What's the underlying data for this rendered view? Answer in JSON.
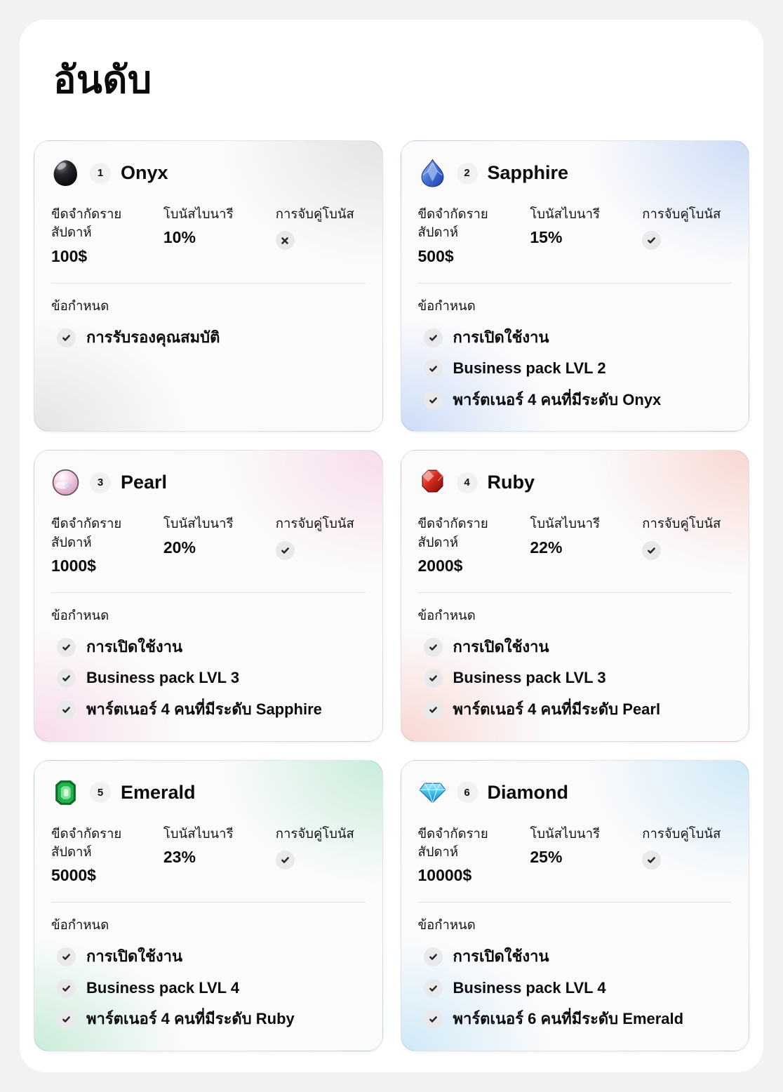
{
  "page_title": "อันดับ",
  "columns": {
    "weekly_limit": "ขีดจำกัดรายสัปดาห์",
    "binary_bonus": "โบนัสไบนารี",
    "matching_bonus": "การจับคู่โบนัส"
  },
  "requirements_label": "ข้อกำหนด",
  "ranks": [
    {
      "number": "1",
      "name": "Onyx",
      "icon": "onyx-gem-icon",
      "tint": "#e4e4e6",
      "weekly_limit": "100$",
      "binary_bonus": "10%",
      "matching_bonus": false,
      "requirements": [
        "การรับรองคุณสมบัติ"
      ]
    },
    {
      "number": "2",
      "name": "Sapphire",
      "icon": "sapphire-gem-icon",
      "tint": "#ccdcf6",
      "weekly_limit": "500$",
      "binary_bonus": "15%",
      "matching_bonus": true,
      "requirements": [
        "การเปิดใช้งาน",
        "Business pack LVL 2",
        "พาร์ตเนอร์ 4 คนที่มีระดับ Onyx"
      ]
    },
    {
      "number": "3",
      "name": "Pearl",
      "icon": "pearl-gem-icon",
      "tint": "#f7dcea",
      "weekly_limit": "1000$",
      "binary_bonus": "20%",
      "matching_bonus": true,
      "requirements": [
        "การเปิดใช้งาน",
        "Business pack LVL 3",
        "พาร์ตเนอร์ 4 คนที่มีระดับ Sapphire"
      ]
    },
    {
      "number": "4",
      "name": "Ruby",
      "icon": "ruby-gem-icon",
      "tint": "#f8d7d2",
      "weekly_limit": "2000$",
      "binary_bonus": "22%",
      "matching_bonus": true,
      "requirements": [
        "การเปิดใช้งาน",
        "Business pack LVL 3",
        "พาร์ตเนอร์ 4 คนที่มีระดับ Pearl"
      ]
    },
    {
      "number": "5",
      "name": "Emerald",
      "icon": "emerald-gem-icon",
      "tint": "#c9ecd9",
      "weekly_limit": "5000$",
      "binary_bonus": "23%",
      "matching_bonus": true,
      "requirements": [
        "การเปิดใช้งาน",
        "Business pack LVL 4",
        "พาร์ตเนอร์ 4 คนที่มีระดับ Ruby"
      ]
    },
    {
      "number": "6",
      "name": "Diamond",
      "icon": "diamond-gem-icon",
      "tint": "#cfe9f7",
      "weekly_limit": "10000$",
      "binary_bonus": "25%",
      "matching_bonus": true,
      "requirements": [
        "การเปิดใช้งาน",
        "Business pack LVL 4",
        "พาร์ตเนอร์ 6 คนที่มีระดับ Emerald"
      ]
    }
  ]
}
